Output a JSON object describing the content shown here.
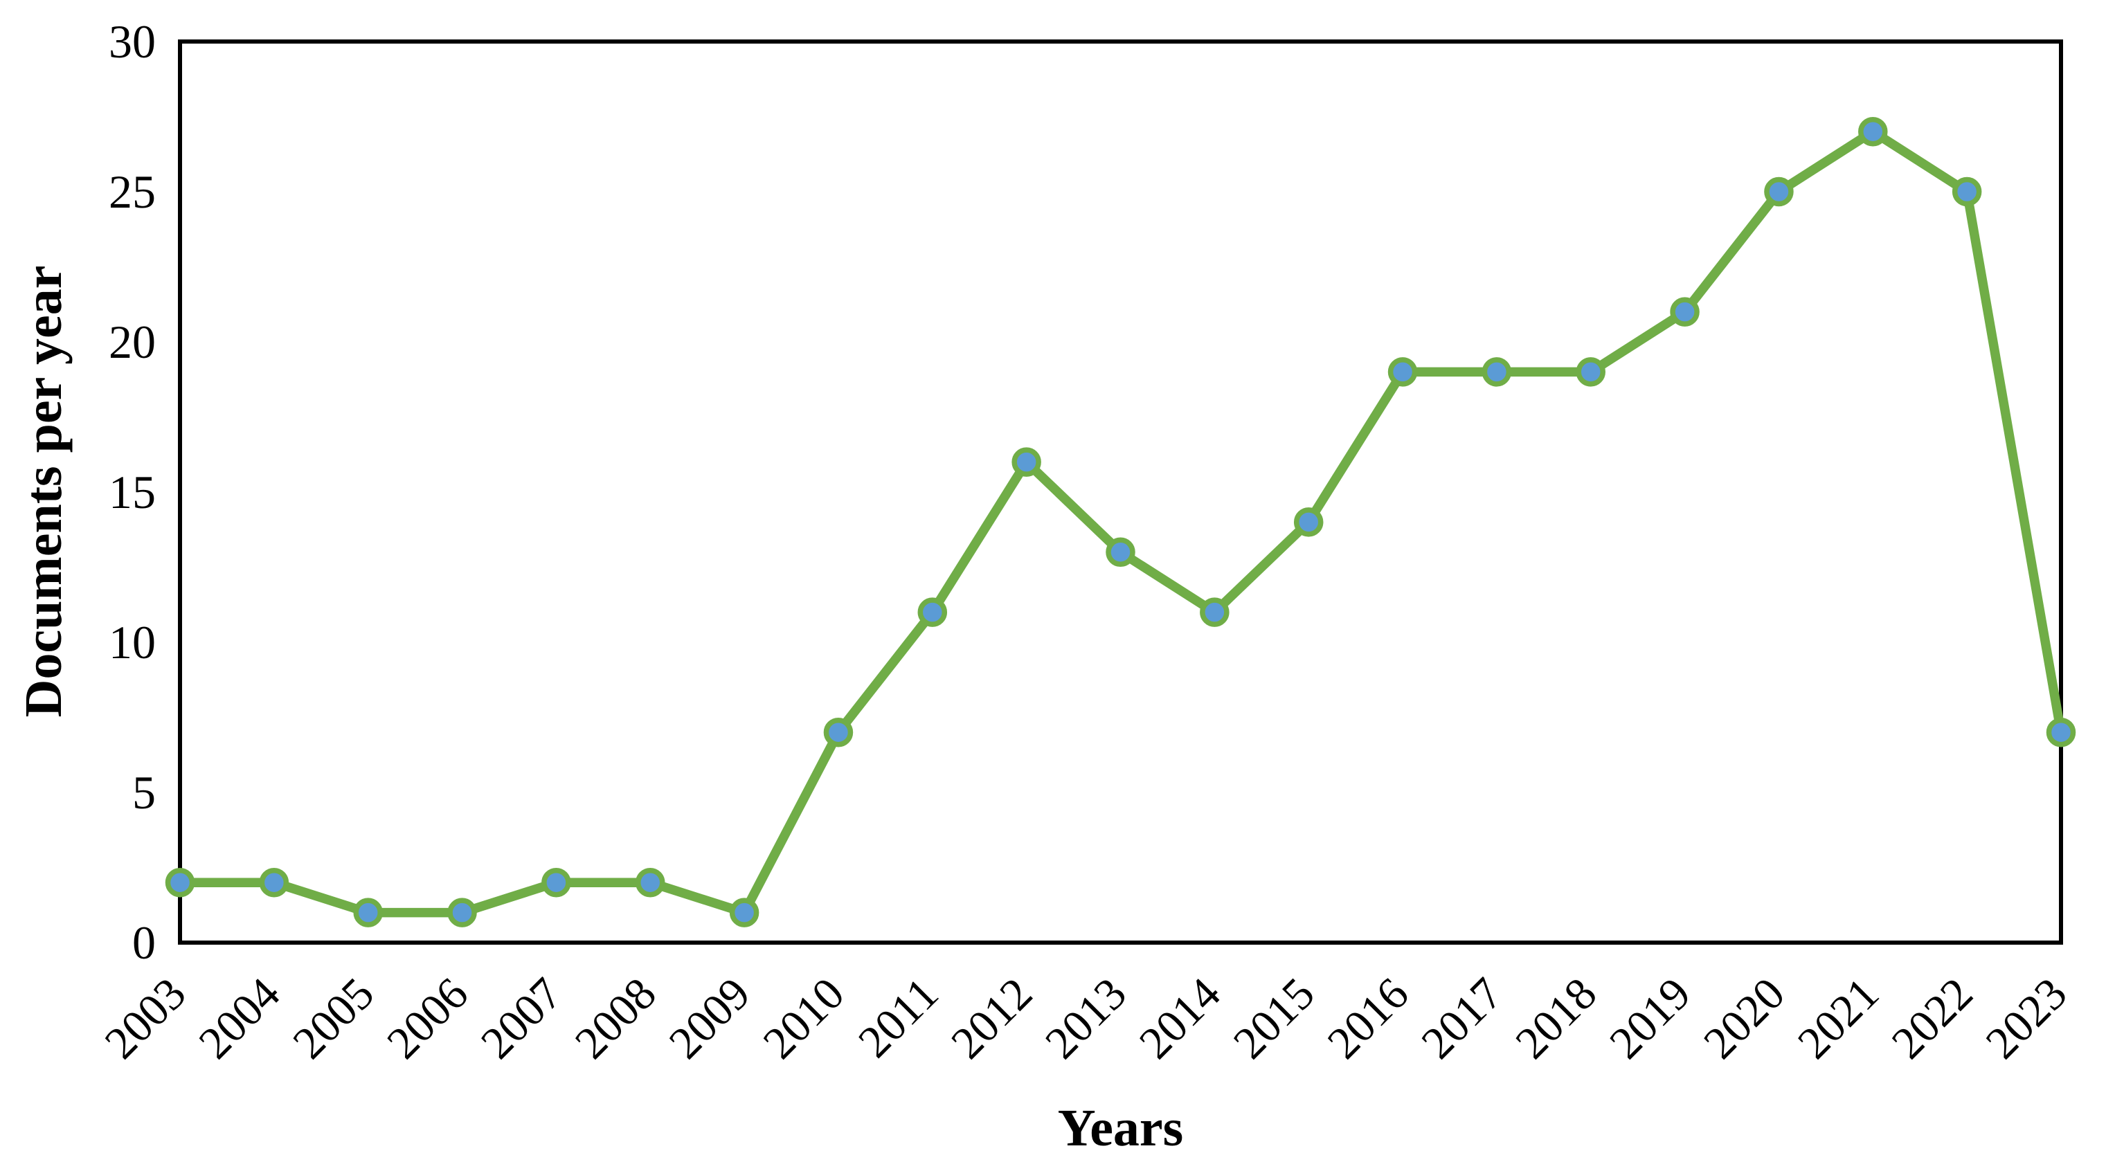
{
  "chart_data": {
    "type": "line",
    "title": "",
    "xlabel": "Years",
    "ylabel": "Documents per year",
    "categories": [
      "2003",
      "2004",
      "2005",
      "2006",
      "2007",
      "2008",
      "2009",
      "2010",
      "2011",
      "2012",
      "2013",
      "2014",
      "2015",
      "2016",
      "2017",
      "2018",
      "2019",
      "2020",
      "2021",
      "2022",
      "2023"
    ],
    "series": [
      {
        "name": "Documents per year",
        "values": [
          2,
          2,
          1,
          1,
          2,
          2,
          1,
          7,
          11,
          16,
          13,
          11,
          14,
          19,
          19,
          19,
          21,
          25,
          27,
          25,
          7
        ]
      }
    ],
    "ylim": [
      0,
      30
    ],
    "yticks": [
      0,
      5,
      10,
      15,
      20,
      25,
      30
    ],
    "grid": false,
    "legend": "none",
    "colors": {
      "line": "#70AD47",
      "marker_fill": "#5B9BD5",
      "marker_ring": "#70AD47",
      "axis": "#000000",
      "text": "#000000",
      "background": "#ffffff"
    }
  }
}
